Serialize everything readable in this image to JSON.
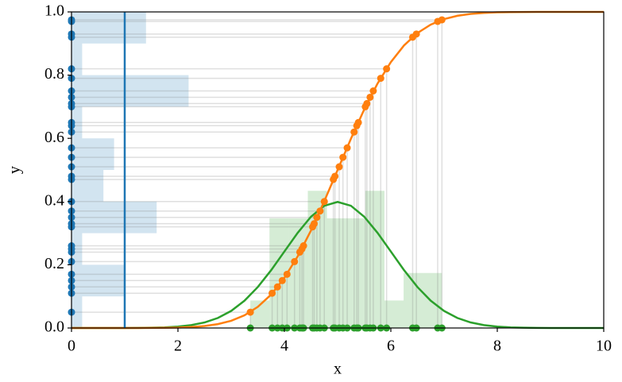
{
  "chart_data": {
    "type": "inverse_transform",
    "xlabel": "x",
    "ylabel": "y",
    "xlim": [
      0,
      10
    ],
    "ylim": [
      0,
      1
    ],
    "xticks": [
      0,
      2,
      4,
      6,
      8,
      10
    ],
    "yticks": [
      {
        "value": 0,
        "label": "0.0"
      },
      {
        "value": 0.2,
        "label": "0.2"
      },
      {
        "value": 0.4,
        "label": "0.4"
      },
      {
        "value": 0.6,
        "label": "0.6"
      },
      {
        "value": 0.8,
        "label": "0.8"
      },
      {
        "value": 1,
        "label": "1.0"
      }
    ],
    "colors": {
      "uniform": "#1f77b4",
      "cdf": "#ff7f0e",
      "normal": "#2ca02c",
      "guide": "#808080"
    },
    "vline_x": 1,
    "uniform_samples": [
      0.975,
      0.97,
      0.93,
      0.92,
      0.82,
      0.79,
      0.75,
      0.73,
      0.71,
      0.7,
      0.65,
      0.64,
      0.62,
      0.57,
      0.54,
      0.51,
      0.48,
      0.47,
      0.4,
      0.37,
      0.35,
      0.33,
      0.32,
      0.26,
      0.25,
      0.24,
      0.21,
      0.17,
      0.15,
      0.13,
      0.11,
      0.05
    ],
    "normal_samples": [
      6.96,
      6.88,
      6.48,
      6.41,
      5.92,
      5.81,
      5.67,
      5.61,
      5.55,
      5.52,
      5.39,
      5.36,
      5.31,
      5.18,
      5.1,
      5.03,
      4.95,
      4.92,
      4.75,
      4.67,
      4.61,
      4.56,
      4.53,
      4.36,
      4.33,
      4.29,
      4.19,
      4.05,
      3.96,
      3.87,
      3.77,
      3.36
    ],
    "uniform_hist": {
      "bins": [
        0,
        0.1,
        0.2,
        0.3,
        0.4,
        0.5,
        0.6,
        0.7,
        0.8,
        0.9,
        1.0
      ],
      "values": [
        0.2,
        1.0,
        0.2,
        1.6,
        0.6,
        0.8,
        0.2,
        2.2,
        0.2,
        1.4
      ]
    },
    "normal_hist": {
      "bins": [
        3.36,
        3.72,
        4.08,
        4.44,
        4.8,
        5.16,
        5.52,
        5.88,
        6.24,
        6.6,
        6.96
      ],
      "values": [
        0.087,
        0.347,
        0.347,
        0.434,
        0.347,
        0.347,
        0.434,
        0.087,
        0.174,
        0.174
      ]
    },
    "curve_x": [
      0,
      0.25,
      0.5,
      0.75,
      1,
      1.25,
      1.5,
      1.75,
      2,
      2.25,
      2.5,
      2.75,
      3,
      3.25,
      3.5,
      3.75,
      4,
      4.25,
      4.5,
      4.75,
      5,
      5.25,
      5.5,
      5.75,
      6,
      6.25,
      6.5,
      6.75,
      7,
      7.25,
      7.5,
      7.75,
      8,
      8.25,
      8.5,
      8.75,
      9,
      9.25,
      9.5,
      9.75,
      10
    ],
    "cdf": [
      0,
      0,
      0,
      0,
      0,
      0.0001,
      0.0002,
      0.0006,
      0.0013,
      0.003,
      0.0062,
      0.0122,
      0.0228,
      0.0401,
      0.0668,
      0.1056,
      0.1587,
      0.2266,
      0.3085,
      0.4013,
      0.5,
      0.5987,
      0.6915,
      0.7734,
      0.8413,
      0.8944,
      0.9332,
      0.9599,
      0.9772,
      0.9878,
      0.9938,
      0.997,
      0.9987,
      0.9994,
      0.9998,
      0.9999,
      1,
      1,
      1,
      1,
      1
    ],
    "pdf": [
      0,
      0,
      0,
      0,
      0.0001,
      0.0004,
      0.0009,
      0.002,
      0.0044,
      0.0091,
      0.0175,
      0.0317,
      0.054,
      0.0863,
      0.1295,
      0.1826,
      0.242,
      0.3011,
      0.3521,
      0.3867,
      0.3989,
      0.3867,
      0.3521,
      0.3011,
      0.242,
      0.1826,
      0.1295,
      0.0863,
      0.054,
      0.0317,
      0.0175,
      0.0091,
      0.0044,
      0.002,
      0.0009,
      0.0004,
      0.0001,
      0,
      0,
      0,
      0
    ]
  }
}
